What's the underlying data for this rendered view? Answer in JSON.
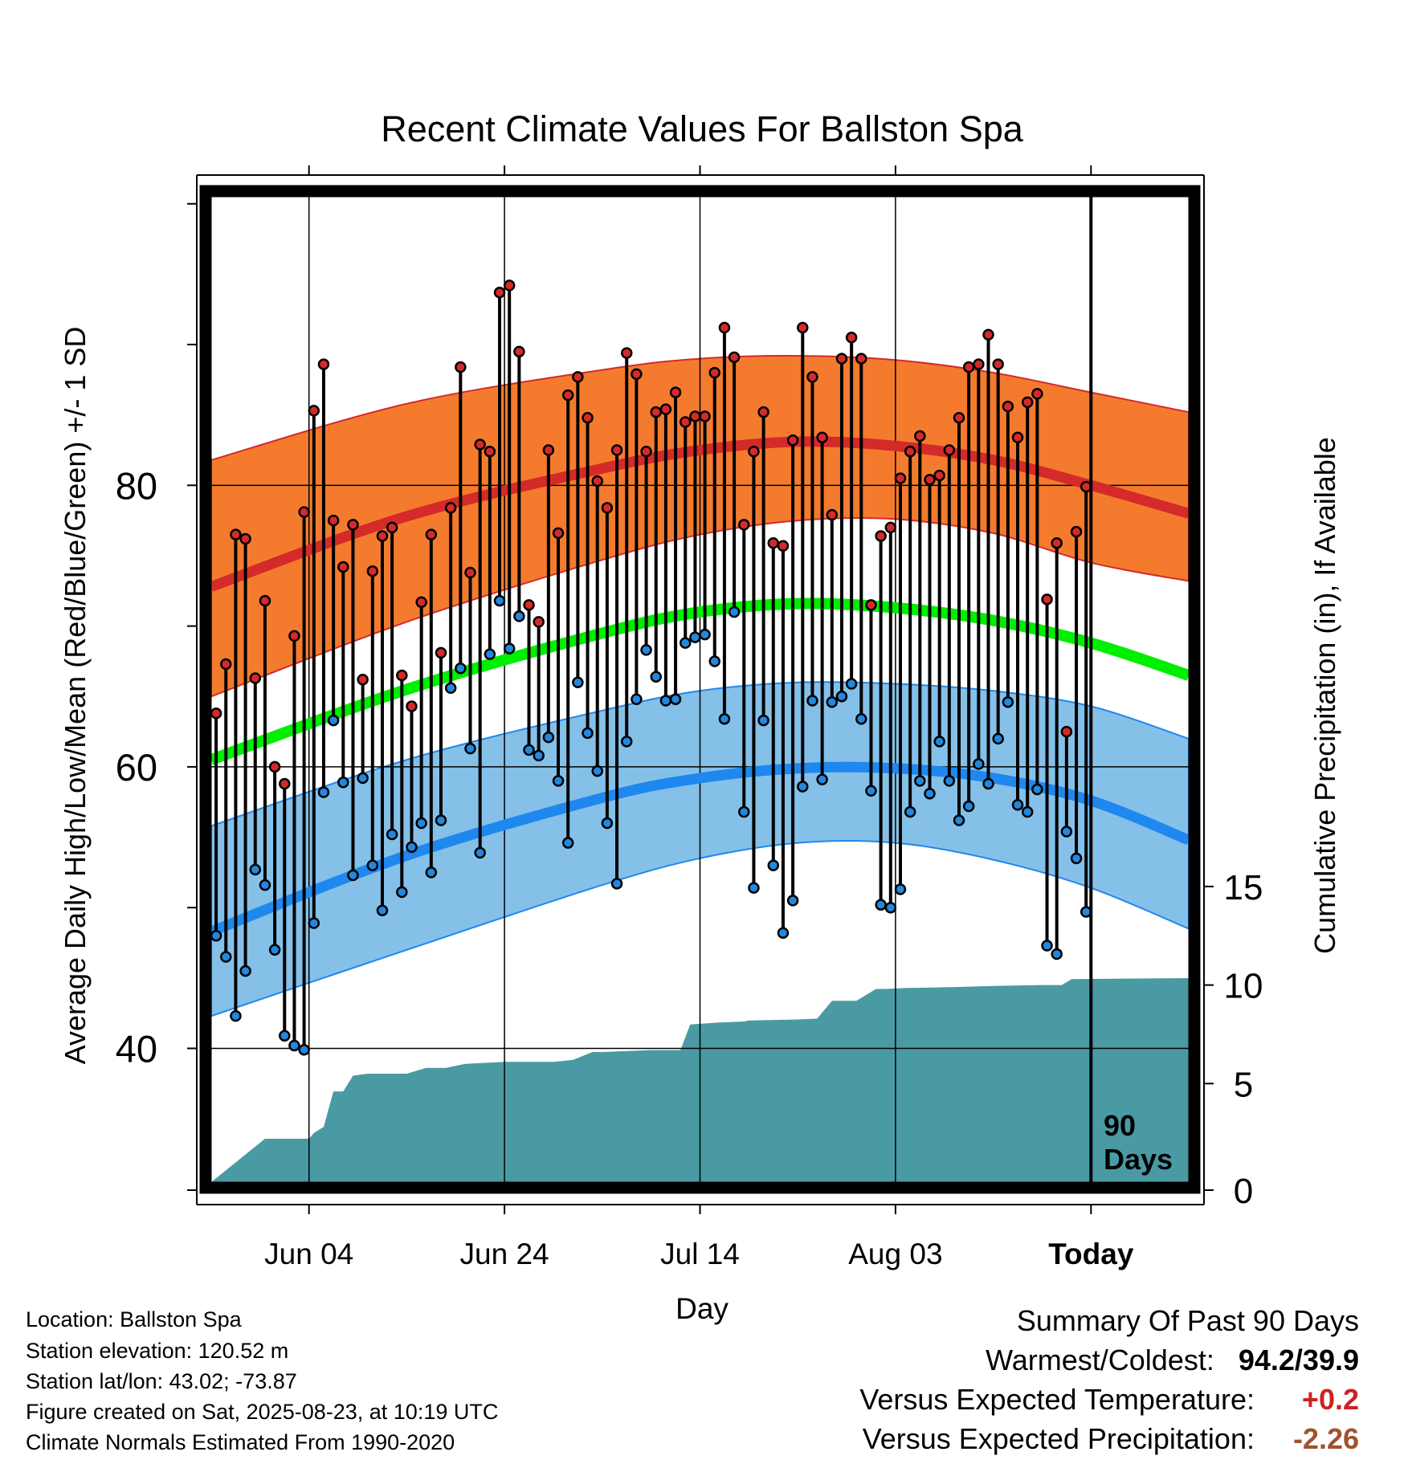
{
  "chart_data": {
    "type": "line",
    "title": "Recent Climate Values For Ballston Spa",
    "xlabel": "Day",
    "ylabel": "Average Daily High/Low/Mean (Red/Blue/Green) +/- 1 SD",
    "y2label": "Cumulative Precipitation (in), If Available",
    "x_ticks": [
      "Jun 04",
      "Jun 24",
      "Jul 14",
      "Aug 03",
      "Today"
    ],
    "y_ticks": [
      40,
      60,
      80
    ],
    "y2_ticks": [
      0,
      5,
      10,
      15
    ],
    "ylim": [
      30.5,
      100.5
    ],
    "y2lim": [
      0,
      50
    ],
    "xlim": [
      0,
      100
    ],
    "grid": true,
    "today_marker": {
      "x": 90,
      "label_line1": "90",
      "label_line2": "Days"
    },
    "normal_high": {
      "x": [
        0,
        20,
        40,
        50,
        60,
        70,
        80,
        90,
        100
      ],
      "mean": [
        72.8,
        77.8,
        81.2,
        82.5,
        83.1,
        82.8,
        81.8,
        80.0,
        78.0
      ],
      "upper": [
        81.8,
        85.8,
        88.2,
        89.0,
        89.2,
        88.9,
        88.0,
        86.6,
        85.2
      ],
      "lower": [
        65.0,
        70.3,
        74.7,
        76.5,
        77.5,
        77.6,
        76.6,
        74.5,
        73.2
      ]
    },
    "normal_low": {
      "x": [
        0,
        20,
        40,
        50,
        60,
        70,
        80,
        90,
        100
      ],
      "mean": [
        48.3,
        53.7,
        57.8,
        59.2,
        59.9,
        59.9,
        59.2,
        57.6,
        54.8
      ],
      "upper": [
        55.8,
        60.5,
        64.0,
        65.4,
        66.0,
        65.9,
        65.4,
        64.3,
        62.0
      ],
      "lower": [
        42.3,
        47.0,
        51.6,
        53.5,
        54.6,
        54.6,
        53.4,
        51.4,
        48.5
      ]
    },
    "normal_mean": {
      "x": [
        0,
        20,
        40,
        50,
        60,
        70,
        80,
        90,
        100
      ],
      "values": [
        60.5,
        65.5,
        69.5,
        71.0,
        71.6,
        71.3,
        70.4,
        68.8,
        66.5
      ]
    },
    "series": [
      {
        "name": "High",
        "values": [
          63.8,
          67.3,
          76.5,
          76.2,
          66.3,
          71.8,
          60.0,
          58.8,
          69.3,
          78.1,
          85.3,
          88.6,
          77.5,
          74.2,
          77.2,
          66.2,
          73.9,
          76.4,
          77.0,
          66.5,
          64.3,
          71.7,
          76.5,
          68.1,
          78.4,
          88.4,
          73.8,
          82.9,
          82.4,
          93.7,
          94.2,
          89.5,
          71.5,
          70.3,
          82.5,
          76.6,
          86.4,
          87.7,
          84.8,
          80.3,
          78.4,
          82.5,
          89.4,
          87.9,
          82.4,
          85.2,
          85.4,
          86.6,
          84.5,
          84.9,
          84.9,
          88.0,
          91.2,
          89.1,
          77.2,
          82.4,
          85.2,
          75.9,
          75.7,
          83.2,
          91.2,
          87.7,
          83.4,
          77.9,
          89.0,
          90.5,
          89.0,
          71.5,
          76.4,
          77.0,
          80.5,
          82.4,
          83.5,
          80.4,
          80.7,
          82.5,
          84.8,
          88.4,
          88.6,
          90.7,
          88.6,
          85.6,
          83.4,
          85.9,
          86.5,
          71.9,
          75.9,
          62.5,
          76.7,
          79.9
        ]
      },
      {
        "name": "Low",
        "values": [
          48.0,
          46.5,
          42.3,
          45.5,
          52.7,
          51.6,
          47.0,
          40.9,
          40.2,
          39.9,
          48.9,
          58.2,
          63.3,
          58.9,
          52.3,
          59.2,
          53.0,
          49.8,
          55.2,
          51.1,
          54.3,
          56.0,
          52.5,
          56.2,
          65.6,
          67.0,
          61.3,
          53.9,
          68.0,
          71.8,
          68.4,
          70.7,
          61.2,
          60.8,
          62.1,
          59.0,
          54.6,
          66.0,
          62.4,
          59.7,
          56.0,
          51.7,
          61.8,
          64.8,
          68.3,
          66.4,
          64.7,
          64.8,
          68.8,
          69.2,
          69.4,
          67.5,
          63.4,
          71.0,
          56.8,
          51.4,
          63.3,
          53.0,
          48.2,
          50.5,
          58.6,
          64.7,
          59.1,
          64.6,
          65.0,
          65.9,
          63.4,
          58.3,
          50.2,
          50.0,
          51.3,
          56.8,
          59.0,
          58.1,
          61.8,
          59.0,
          56.2,
          57.2,
          60.2,
          58.8,
          62.0,
          64.6,
          57.3,
          56.8,
          58.4,
          47.3,
          46.7,
          55.4,
          53.5,
          49.7
        ]
      },
      {
        "name": "Cumulative Precipitation",
        "x": [
          0,
          5.5,
          10.0,
          10.5,
          11.5,
          12.5,
          13.5,
          14.5,
          16.0,
          20.0,
          22.0,
          24.0,
          26.0,
          30.0,
          35.0,
          37.0,
          39.0,
          40.0,
          45.0,
          48.0,
          49.0,
          52.0,
          54.5,
          55.0,
          60.0,
          62.0,
          63.5,
          65.0,
          66.0,
          68.0,
          69.0,
          71.0,
          76.0,
          80.0,
          85.0,
          87.0,
          88.0,
          100.0
        ],
        "values": [
          0,
          2.2,
          2.2,
          2.5,
          2.8,
          4.6,
          4.6,
          5.4,
          5.5,
          5.5,
          5.8,
          5.8,
          6.0,
          6.1,
          6.1,
          6.2,
          6.6,
          6.6,
          6.7,
          6.7,
          8.0,
          8.1,
          8.15,
          8.2,
          8.25,
          8.3,
          9.2,
          9.2,
          9.2,
          9.8,
          9.8,
          9.85,
          9.9,
          9.95,
          10.0,
          10.0,
          10.3,
          10.35
        ]
      }
    ]
  },
  "footer_info": {
    "location": "Location: Ballston Spa",
    "elevation": "Station elevation: 120.52 m",
    "latlon": "Station lat/lon: 43.02; -73.87",
    "created": "Figure created on Sat, 2025-08-23, at 10:19 UTC",
    "normals": "Climate Normals Estimated From 1990-2020"
  },
  "summary": {
    "title": "Summary Of Past 90 Days",
    "warm_cold_label": "Warmest/Coldest:",
    "warm_cold_value": "94.2/39.9",
    "temp_label": "Versus Expected Temperature:",
    "temp_value": "+0.2",
    "precip_label": "Versus Expected Precipitation:",
    "precip_value": "-2.26"
  },
  "colors": {
    "high_band": "#f47b2e",
    "high_line": "#d42a2a",
    "low_band": "#85c0e8",
    "low_line": "#1e88ee",
    "mean_line": "#00ee00",
    "precip": "#4a9aa4",
    "dot_high": "#d42a2a",
    "dot_low": "#2288dd",
    "temp_positive": "#cc2222",
    "precip_negative": "#a0522d"
  }
}
